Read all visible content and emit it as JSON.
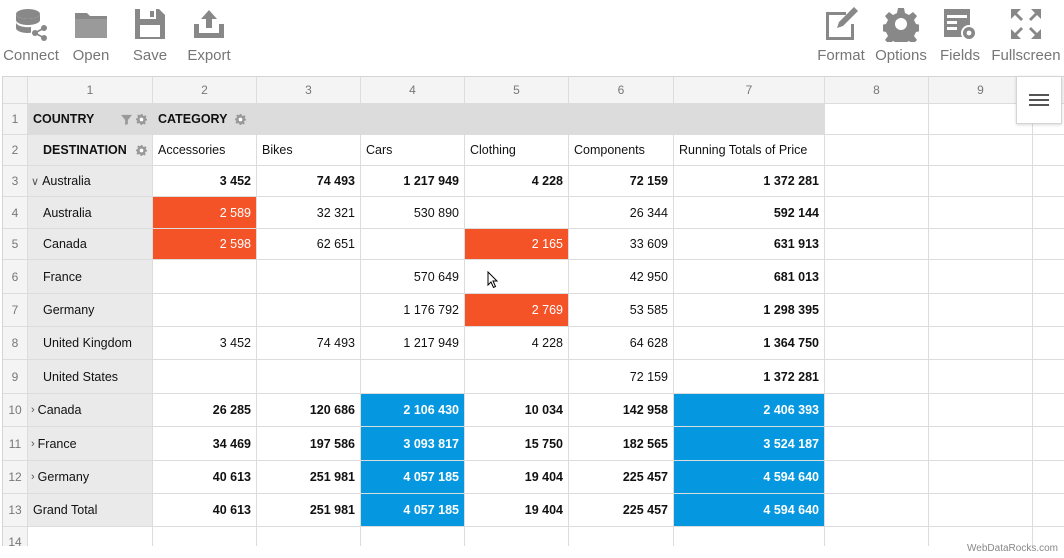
{
  "toolbar": {
    "left": [
      {
        "label": "Connect",
        "icon": "database-icon"
      },
      {
        "label": "Open",
        "icon": "folder-icon"
      },
      {
        "label": "Save",
        "icon": "floppy-disk-icon"
      },
      {
        "label": "Export",
        "icon": "export-icon"
      }
    ],
    "right": [
      {
        "label": "Format",
        "icon": "format-icon"
      },
      {
        "label": "Options",
        "icon": "gear-icon"
      },
      {
        "label": "Fields",
        "icon": "fields-icon"
      },
      {
        "label": "Fullscreen",
        "icon": "fullscreen-icon"
      }
    ]
  },
  "grid": {
    "column_numbers": [
      "1",
      "2",
      "3",
      "4",
      "5",
      "6",
      "7",
      "8",
      "9"
    ],
    "row_numbers": [
      "1",
      "2",
      "3",
      "4",
      "5",
      "6",
      "7",
      "8",
      "9",
      "10",
      "11",
      "12",
      "13",
      "14"
    ],
    "row_field": "COUNTRY",
    "column_field": "CATEGORY",
    "sub_row_field": "DESTINATION",
    "column_headers": [
      "Accessories",
      "Bikes",
      "Cars",
      "Clothing",
      "Components",
      "Running Totals of Price"
    ],
    "rows": [
      {
        "label": "Australia",
        "level": "country",
        "expanded": true,
        "bold": true,
        "values": [
          "3 452",
          "74 493",
          "1 217 949",
          "4 228",
          "72 159",
          "1 372 281"
        ]
      },
      {
        "label": "Australia",
        "level": "destination",
        "values": [
          "2 589",
          "32 321",
          "530 890",
          "",
          "26 344",
          "592 144"
        ]
      },
      {
        "label": "Canada",
        "level": "destination",
        "values": [
          "2 598",
          "62 651",
          "",
          "2 165",
          "33 609",
          "631 913"
        ]
      },
      {
        "label": "France",
        "level": "destination",
        "values": [
          "",
          "",
          "570 649",
          "",
          "42 950",
          "681 013"
        ]
      },
      {
        "label": "Germany",
        "level": "destination",
        "values": [
          "",
          "",
          "1 176 792",
          "2 769",
          "53 585",
          "1 298 395"
        ]
      },
      {
        "label": "United Kingdom",
        "level": "destination",
        "values": [
          "3 452",
          "74 493",
          "1 217 949",
          "4 228",
          "64 628",
          "1 364 750"
        ]
      },
      {
        "label": "United States",
        "level": "destination",
        "values": [
          "",
          "",
          "",
          "",
          "72 159",
          "1 372 281"
        ]
      },
      {
        "label": "Canada",
        "level": "country",
        "expanded": false,
        "bold": true,
        "values": [
          "26 285",
          "120 686",
          "2 106 430",
          "10 034",
          "142 958",
          "2 406 393"
        ]
      },
      {
        "label": "France",
        "level": "country",
        "expanded": false,
        "bold": true,
        "values": [
          "34 469",
          "197 586",
          "3 093 817",
          "15 750",
          "182 565",
          "3 524 187"
        ]
      },
      {
        "label": "Germany",
        "level": "country",
        "expanded": false,
        "bold": true,
        "values": [
          "40 613",
          "251 981",
          "4 057 185",
          "19 404",
          "225 457",
          "4 594 640"
        ]
      },
      {
        "label": "Grand Total",
        "level": "total",
        "bold": true,
        "values": [
          "40 613",
          "251 981",
          "4 057 185",
          "19 404",
          "225 457",
          "4 594 640"
        ]
      }
    ],
    "highlights": {
      "red": "#f45328",
      "blue": "#0597e0",
      "red_cells": [
        [
          1,
          0
        ],
        [
          2,
          0
        ],
        [
          2,
          3
        ],
        [
          4,
          3
        ]
      ],
      "blue_cells": [
        [
          7,
          2
        ],
        [
          7,
          5
        ],
        [
          8,
          2
        ],
        [
          8,
          5
        ],
        [
          9,
          2
        ],
        [
          9,
          5
        ],
        [
          10,
          2
        ],
        [
          10,
          5
        ]
      ]
    }
  },
  "watermark": "WebDataRocks.com"
}
